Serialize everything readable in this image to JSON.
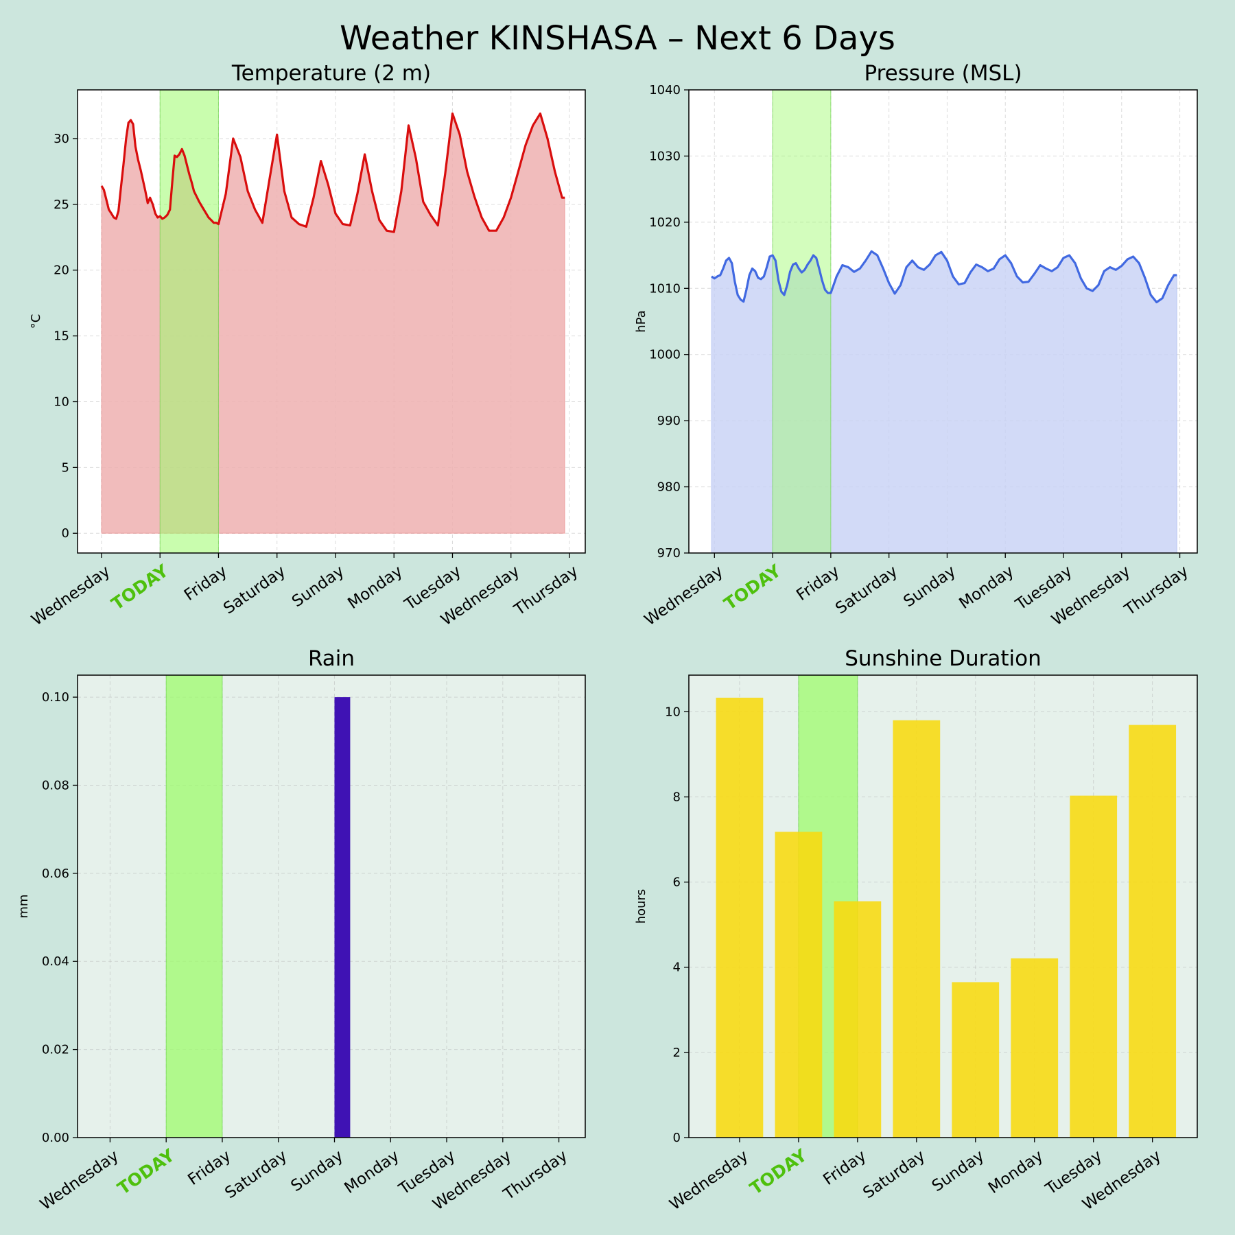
{
  "title": "Weather KINSHASA – Next 6 Days",
  "colors": {
    "figure_bg": "#cce6dd",
    "today_band": "#9dfb6c",
    "today_label": "#4ec00d",
    "temperature_line": "#d90d0d",
    "temperature_fill": "#efb0b0",
    "pressure_line": "#4169e1",
    "pressure_fill": "#c7d1f5",
    "rain_bar": "#3f12b4",
    "sunshine_bar": "#f8d90f",
    "lower_axes_bg": "#e6f1eb"
  },
  "chart_data": [
    {
      "id": "temperature",
      "type": "area",
      "title": "Temperature (2 m)",
      "ylabel": "°C",
      "ylim": [
        -1.5,
        33.7
      ],
      "yticks": [
        "0",
        "5",
        "10",
        "15",
        "20",
        "25",
        "30"
      ],
      "xlim": [
        -0.41,
        8.27
      ],
      "xticks": [
        {
          "pos": 0,
          "label": "Wednesday"
        },
        {
          "pos": 1,
          "label": "TODAY",
          "highlight": true
        },
        {
          "pos": 2,
          "label": "Friday"
        },
        {
          "pos": 3,
          "label": "Saturday"
        },
        {
          "pos": 4,
          "label": "Sunday"
        },
        {
          "pos": 5,
          "label": "Monday"
        },
        {
          "pos": 6,
          "label": "Tuesday"
        },
        {
          "pos": 7,
          "label": "Wednesday"
        },
        {
          "pos": 8,
          "label": "Thursday"
        }
      ],
      "today_band": [
        1,
        2
      ],
      "grid": true,
      "series": [
        {
          "x": [
            0,
            0.04,
            0.08,
            0.125,
            0.17,
            0.21,
            0.25,
            0.29,
            0.33,
            0.375,
            0.42,
            0.46,
            0.5,
            0.54,
            0.58,
            0.625,
            0.67,
            0.71,
            0.75,
            0.79,
            0.83,
            0.875,
            0.92,
            0.96,
            1,
            1.04,
            1.08,
            1.125,
            1.17,
            1.21,
            1.25,
            1.29,
            1.33,
            1.375,
            1.42,
            1.46,
            1.5,
            1.54,
            1.58,
            1.625,
            1.67,
            1.71,
            1.75,
            1.79,
            1.83,
            1.875,
            1.92,
            1.96,
            2,
            2.125,
            2.25,
            2.375,
            2.5,
            2.625,
            2.75,
            2.875,
            3,
            3.125,
            3.25,
            3.375,
            3.5,
            3.625,
            3.75,
            3.875,
            4,
            4.125,
            4.25,
            4.375,
            4.5,
            4.625,
            4.75,
            4.875,
            5,
            5.125,
            5.25,
            5.375,
            5.5,
            5.625,
            5.75,
            5.875,
            6,
            6.125,
            6.25,
            6.375,
            6.5,
            6.625,
            6.75,
            6.875,
            7,
            7.125,
            7.25,
            7.375,
            7.5,
            7.625,
            7.75,
            7.875,
            7.92
          ],
          "values": [
            26.4,
            26.1,
            25.4,
            24.6,
            24.3,
            24.0,
            23.9,
            24.5,
            26.2,
            28.0,
            30.0,
            31.2,
            31.4,
            31.1,
            29.4,
            28.4,
            27.6,
            26.8,
            26.0,
            25.1,
            25.5,
            25.0,
            24.3,
            24.0,
            24.1,
            23.9,
            24.0,
            24.2,
            24.6,
            26.7,
            28.7,
            28.6,
            28.8,
            29.2,
            28.7,
            28.0,
            27.3,
            26.7,
            26.0,
            25.6,
            25.2,
            24.9,
            24.6,
            24.3,
            24.0,
            23.8,
            23.6,
            23.6,
            23.5,
            25.8,
            30.0,
            28.6,
            26.0,
            24.6,
            23.6,
            27.0,
            30.3,
            26.0,
            24.0,
            23.5,
            23.3,
            25.5,
            28.3,
            26.5,
            24.3,
            23.5,
            23.4,
            25.8,
            28.8,
            26.0,
            23.8,
            23.0,
            22.9,
            26.0,
            31.0,
            28.5,
            25.2,
            24.2,
            23.4,
            27.3,
            31.9,
            30.3,
            27.5,
            25.6,
            24.0,
            23.0,
            23.0,
            24.0,
            25.5,
            27.5,
            29.5,
            31.0,
            31.9,
            30.0,
            27.5,
            25.5,
            25.5
          ]
        }
      ]
    },
    {
      "id": "pressure",
      "type": "area",
      "title": "Pressure (MSL)",
      "ylabel": "hPa",
      "ylim": [
        970,
        1040
      ],
      "yticks": [
        "970",
        "980",
        "990",
        "1000",
        "1010",
        "1020",
        "1030",
        "1040"
      ],
      "xlim": [
        -0.44,
        8.3
      ],
      "xticks": [
        {
          "pos": 0,
          "label": "Wednesday"
        },
        {
          "pos": 1,
          "label": "TODAY",
          "highlight": true
        },
        {
          "pos": 2,
          "label": "Friday"
        },
        {
          "pos": 3,
          "label": "Saturday"
        },
        {
          "pos": 4,
          "label": "Sunday"
        },
        {
          "pos": 5,
          "label": "Monday"
        },
        {
          "pos": 6,
          "label": "Tuesday"
        },
        {
          "pos": 7,
          "label": "Wednesday"
        },
        {
          "pos": 8,
          "label": "Thursday"
        }
      ],
      "today_band": [
        1,
        2
      ],
      "grid": true,
      "series": [
        {
          "x": [
            -0.05,
            0,
            0.05,
            0.1,
            0.15,
            0.2,
            0.25,
            0.3,
            0.35,
            0.4,
            0.45,
            0.5,
            0.55,
            0.6,
            0.65,
            0.7,
            0.75,
            0.8,
            0.85,
            0.9,
            0.95,
            1,
            1.05,
            1.1,
            1.15,
            1.2,
            1.25,
            1.3,
            1.35,
            1.4,
            1.45,
            1.5,
            1.55,
            1.6,
            1.65,
            1.7,
            1.75,
            1.8,
            1.85,
            1.9,
            1.95,
            2,
            2.1,
            2.2,
            2.3,
            2.4,
            2.5,
            2.6,
            2.7,
            2.8,
            2.9,
            3,
            3.1,
            3.2,
            3.3,
            3.4,
            3.5,
            3.6,
            3.7,
            3.8,
            3.9,
            4,
            4.1,
            4.2,
            4.3,
            4.4,
            4.5,
            4.6,
            4.7,
            4.8,
            4.9,
            5,
            5.1,
            5.2,
            5.3,
            5.4,
            5.5,
            5.6,
            5.7,
            5.8,
            5.9,
            6,
            6.1,
            6.2,
            6.3,
            6.4,
            6.5,
            6.6,
            6.7,
            6.8,
            6.9,
            7,
            7.1,
            7.2,
            7.3,
            7.4,
            7.5,
            7.6,
            7.7,
            7.8,
            7.9,
            7.95
          ],
          "values": [
            1011.8,
            1011.5,
            1011.8,
            1012.0,
            1013.0,
            1014.2,
            1014.6,
            1013.8,
            1011.0,
            1009.0,
            1008.3,
            1008.0,
            1009.8,
            1012.0,
            1013.0,
            1012.6,
            1011.6,
            1011.4,
            1011.8,
            1013.2,
            1014.8,
            1015.0,
            1014.2,
            1011.2,
            1009.5,
            1009.0,
            1010.5,
            1012.5,
            1013.6,
            1013.8,
            1013.0,
            1012.4,
            1012.8,
            1013.6,
            1014.2,
            1015.0,
            1014.6,
            1013.0,
            1011.2,
            1009.8,
            1009.3,
            1009.3,
            1011.8,
            1013.5,
            1013.2,
            1012.5,
            1013.0,
            1014.2,
            1015.6,
            1015.0,
            1013.0,
            1010.8,
            1009.2,
            1010.5,
            1013.2,
            1014.2,
            1013.2,
            1012.8,
            1013.6,
            1015.0,
            1015.5,
            1014.2,
            1011.8,
            1010.6,
            1010.8,
            1012.4,
            1013.6,
            1013.2,
            1012.6,
            1013.0,
            1014.4,
            1015.0,
            1013.8,
            1011.8,
            1010.9,
            1011.0,
            1012.2,
            1013.5,
            1013.0,
            1012.6,
            1013.2,
            1014.6,
            1015.0,
            1013.8,
            1011.5,
            1010.0,
            1009.6,
            1010.5,
            1012.6,
            1013.2,
            1012.8,
            1013.4,
            1014.4,
            1014.8,
            1013.8,
            1011.6,
            1009.0,
            1007.9,
            1008.5,
            1010.5,
            1012.0,
            1012.0
          ]
        }
      ]
    },
    {
      "id": "rain",
      "type": "bar",
      "title": "Rain",
      "ylabel": "mm",
      "ylim": [
        0,
        0.105
      ],
      "yticks": [
        "0.00",
        "0.02",
        "0.04",
        "0.06",
        "0.08",
        "0.10"
      ],
      "xlim": [
        -0.58,
        8.47
      ],
      "xticks": [
        {
          "pos": 0,
          "label": "Wednesday"
        },
        {
          "pos": 1,
          "label": "TODAY",
          "highlight": true
        },
        {
          "pos": 2,
          "label": "Friday"
        },
        {
          "pos": 3,
          "label": "Saturday"
        },
        {
          "pos": 4,
          "label": "Sunday"
        },
        {
          "pos": 5,
          "label": "Monday"
        },
        {
          "pos": 6,
          "label": "Tuesday"
        },
        {
          "pos": 7,
          "label": "Wednesday"
        },
        {
          "pos": 8,
          "label": "Thursday"
        }
      ],
      "today_band": [
        1,
        2
      ],
      "grid": true,
      "bar_width": 0.28,
      "bars": [
        {
          "x": 4.14,
          "value": 0.1
        }
      ]
    },
    {
      "id": "sunshine",
      "type": "bar",
      "title": "Sunshine Duration",
      "ylabel": "hours",
      "ylim": [
        0,
        10.86
      ],
      "yticks": [
        "0",
        "2",
        "4",
        "6",
        "8",
        "10"
      ],
      "xlim": [
        -0.86,
        7.76
      ],
      "xticks": [
        {
          "pos": 0,
          "label": "Wednesday"
        },
        {
          "pos": 1,
          "label": "TODAY",
          "highlight": true
        },
        {
          "pos": 2,
          "label": "Friday"
        },
        {
          "pos": 3,
          "label": "Saturday"
        },
        {
          "pos": 4,
          "label": "Sunday"
        },
        {
          "pos": 5,
          "label": "Monday"
        },
        {
          "pos": 6,
          "label": "Tuesday"
        },
        {
          "pos": 7,
          "label": "Wednesday"
        }
      ],
      "today_band": [
        1,
        2
      ],
      "grid": true,
      "bar_width": 0.8,
      "bars": [
        {
          "x": 0,
          "value": 10.33
        },
        {
          "x": 1,
          "value": 7.18
        },
        {
          "x": 2,
          "value": 5.55
        },
        {
          "x": 3,
          "value": 9.8
        },
        {
          "x": 4,
          "value": 3.65
        },
        {
          "x": 5,
          "value": 4.21
        },
        {
          "x": 6,
          "value": 8.03
        },
        {
          "x": 7,
          "value": 9.69
        }
      ]
    }
  ]
}
